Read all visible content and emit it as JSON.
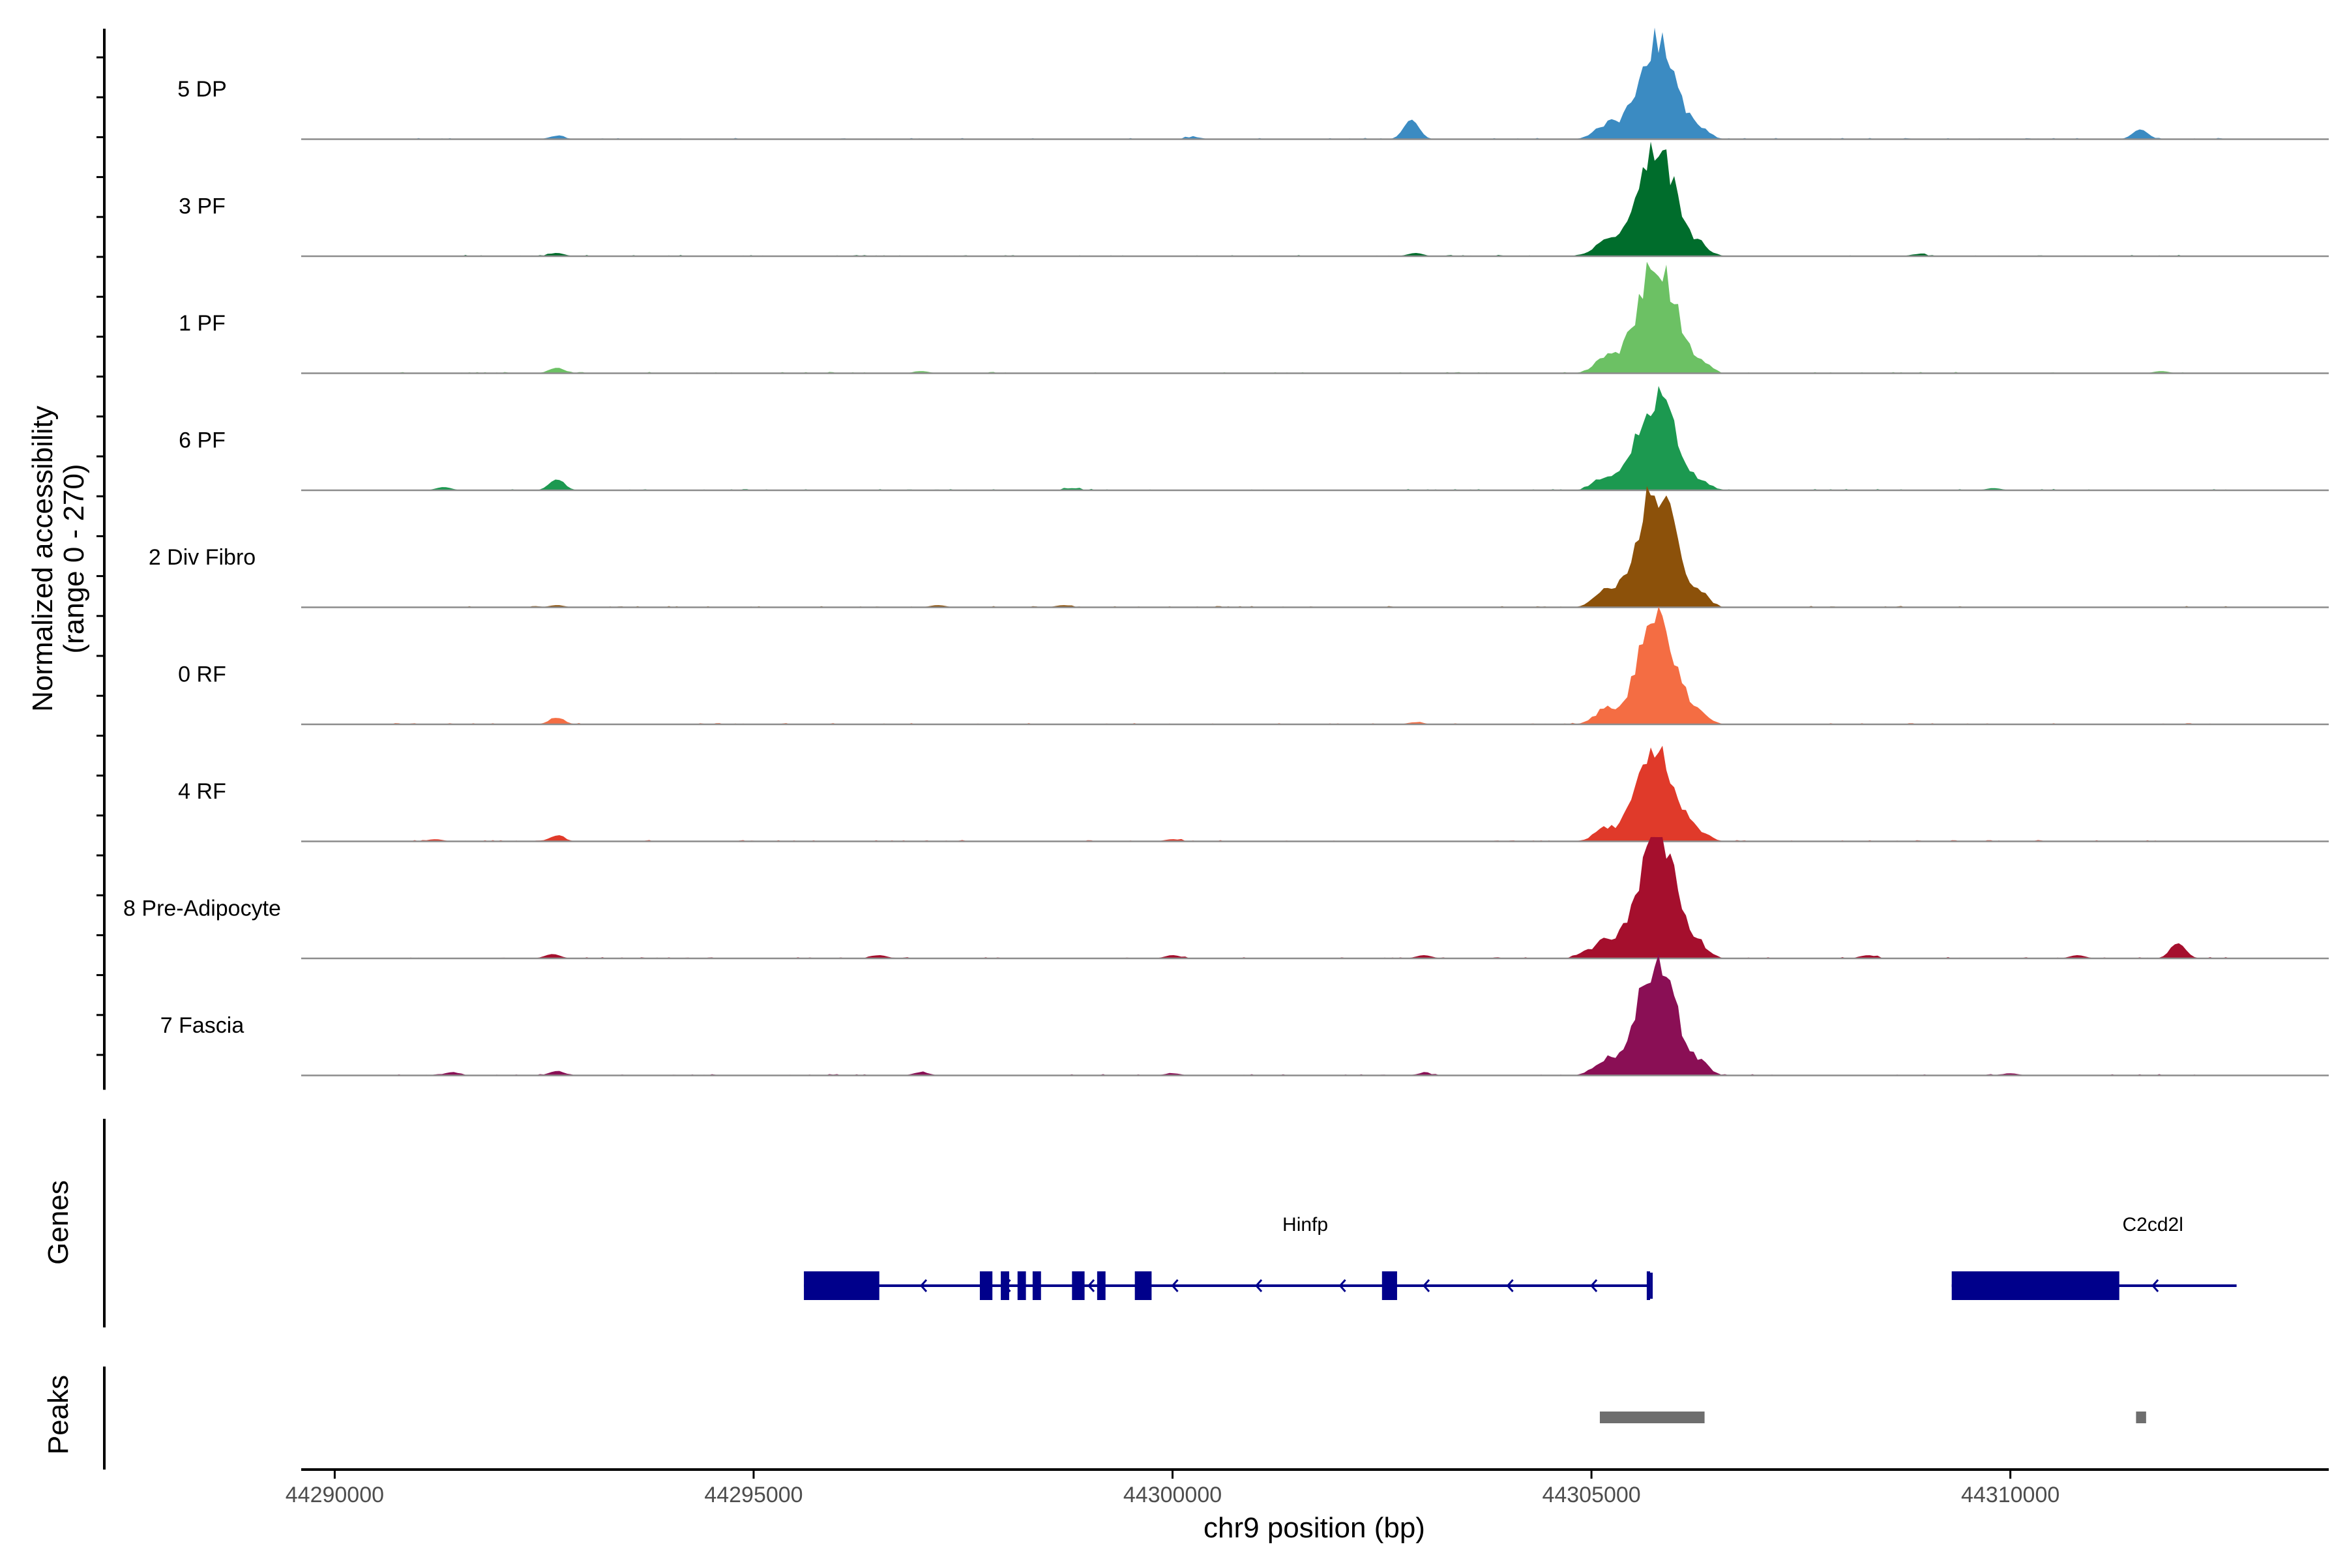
{
  "chart_data": {
    "type": "area",
    "title": "",
    "ylabel": "Normalized accessibility",
    "ylabel_range": "(range 0 - 270)",
    "xlabel": "chr9 position (bp)",
    "xlim": [
      44289600,
      44313800
    ],
    "ylim": [
      0,
      270
    ],
    "x_ticks": [
      "44290000",
      "44295000",
      "44300000",
      "44305000",
      "44310000"
    ],
    "x_tick_values": [
      44290000,
      44295000,
      44300000,
      44305000,
      44310000
    ],
    "grid": false,
    "legend": "none",
    "main_peak_center": 44305780,
    "series": [
      {
        "name": "5 DP",
        "color": "#3B8BC2",
        "peak_max": 240,
        "minor_peaks": [
          [
            44302850,
            0.18
          ],
          [
            44311550,
            0.09
          ],
          [
            44292650,
            0.03
          ],
          [
            44300250,
            0.02
          ]
        ]
      },
      {
        "name": "3 PF",
        "color": "#006D2C",
        "peak_max": 260,
        "minor_peaks": [
          [
            44292650,
            0.03
          ],
          [
            44302900,
            0.03
          ],
          [
            44308900,
            0.02
          ]
        ]
      },
      {
        "name": "1 PF",
        "color": "#6CC164",
        "peak_max": 270,
        "minor_peaks": [
          [
            44292650,
            0.05
          ],
          [
            44297000,
            0.02
          ],
          [
            44311800,
            0.02
          ]
        ]
      },
      {
        "name": "6 PF",
        "color": "#1C9950",
        "peak_max": 230,
        "minor_peaks": [
          [
            44292650,
            0.1
          ],
          [
            44291300,
            0.03
          ],
          [
            44298800,
            0.02
          ],
          [
            44309800,
            0.02
          ]
        ]
      },
      {
        "name": "2 Div Fibro",
        "color": "#8C510A",
        "peak_max": 300,
        "minor_peaks": [
          [
            44292650,
            0.02
          ],
          [
            44297200,
            0.02
          ],
          [
            44298700,
            0.02
          ]
        ]
      },
      {
        "name": "0 RF",
        "color": "#F46D43",
        "peak_max": 250,
        "minor_peaks": [
          [
            44292650,
            0.06
          ],
          [
            44302900,
            0.02
          ]
        ]
      },
      {
        "name": "4 RF",
        "color": "#E03A2A",
        "peak_max": 220,
        "minor_peaks": [
          [
            44292650,
            0.05
          ],
          [
            44291200,
            0.02
          ],
          [
            44300000,
            0.02
          ]
        ]
      },
      {
        "name": "8 Pre-Adipocyte",
        "color": "#A50F2D",
        "peak_max": 300,
        "minor_peaks": [
          [
            44312000,
            0.14
          ],
          [
            44292600,
            0.04
          ],
          [
            44296500,
            0.03
          ],
          [
            44300000,
            0.03
          ],
          [
            44303000,
            0.03
          ],
          [
            44304900,
            0.04
          ],
          [
            44308300,
            0.03
          ],
          [
            44310800,
            0.03
          ]
        ]
      },
      {
        "name": "7 Fascia",
        "color": "#8A0F55",
        "peak_max": 280,
        "minor_peaks": [
          [
            44292650,
            0.04
          ],
          [
            44291400,
            0.03
          ],
          [
            44297000,
            0.03
          ],
          [
            44300000,
            0.02
          ],
          [
            44303000,
            0.02
          ],
          [
            44310000,
            0.02
          ]
        ]
      }
    ],
    "genes": {
      "title": "Genes",
      "color": "#00008B",
      "items": [
        {
          "name": "Hinfp",
          "start": 44295600,
          "end": 44305700,
          "strand": "-",
          "exons": [
            [
              44295600,
              44296500
            ],
            [
              44297700,
              44297850
            ],
            [
              44297950,
              44298050
            ],
            [
              44298150,
              44298250
            ],
            [
              44298330,
              44298430
            ],
            [
              44298800,
              44298950
            ],
            [
              44299100,
              44299200
            ],
            [
              44299550,
              44299750
            ],
            [
              44302500,
              44302680
            ],
            [
              44305660,
              44305700
            ]
          ]
        },
        {
          "name": "C2cd2l",
          "start": 44309300,
          "end": 44312700,
          "strand": "-",
          "exons": [
            [
              44309300,
              44311300
            ]
          ]
        }
      ]
    },
    "peaks": {
      "title": "Peaks",
      "color": "#6E6E6E",
      "items": [
        [
          44305100,
          44306350
        ],
        [
          44311500,
          44311620
        ]
      ]
    }
  }
}
